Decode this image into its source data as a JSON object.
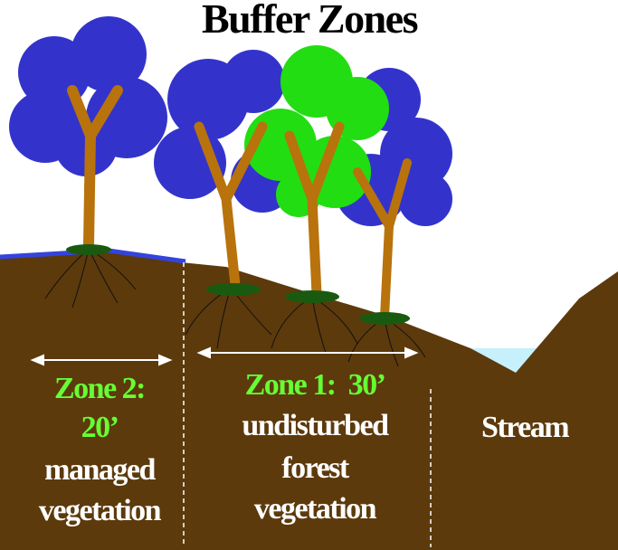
{
  "title": "Buffer Zones",
  "zones": [
    {
      "heading": [
        "Zone 2:",
        "20’"
      ],
      "description": [
        "managed",
        "vegetation"
      ]
    },
    {
      "heading": [
        "Zone 1:  30’"
      ],
      "description": [
        "undisturbed",
        "forest",
        "vegetation"
      ]
    },
    {
      "heading": [
        "Stream"
      ]
    }
  ]
}
